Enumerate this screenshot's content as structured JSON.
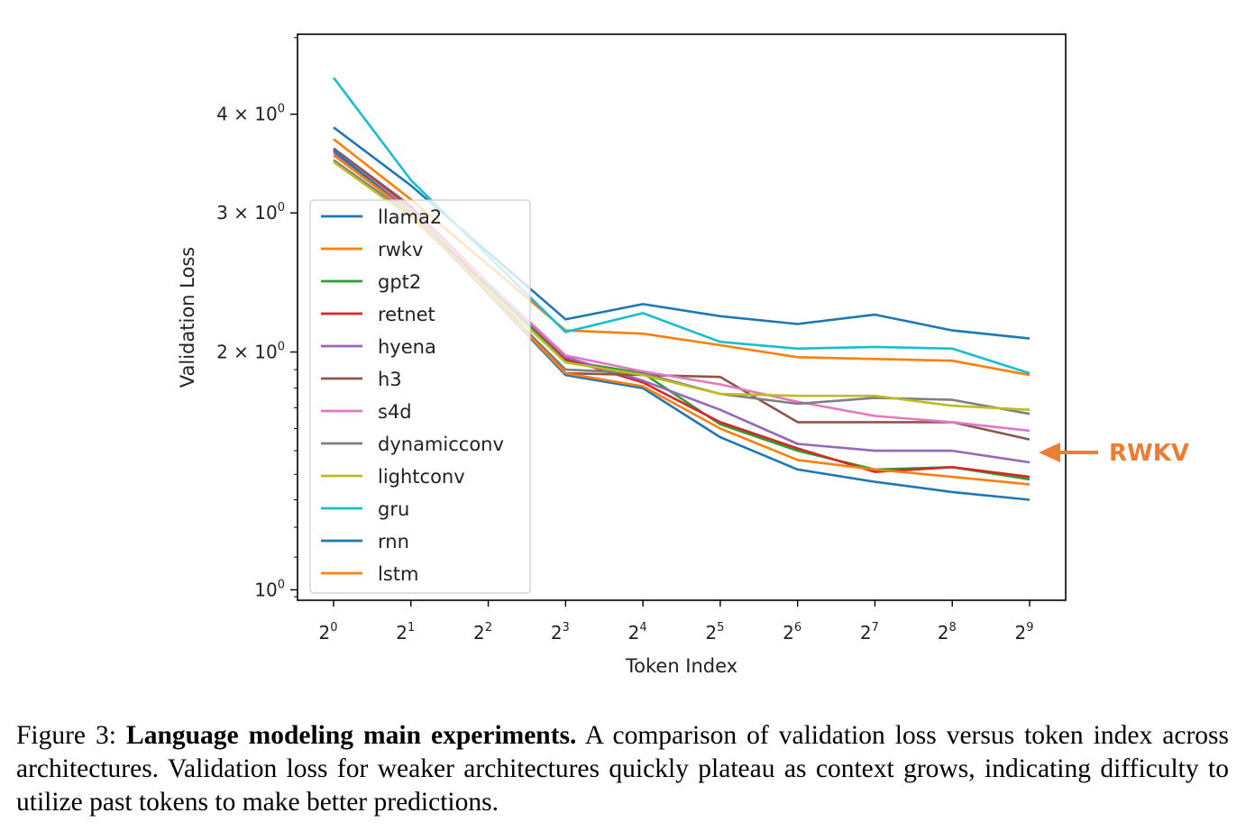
{
  "chart_data": {
    "type": "line",
    "xlabel": "Token Index",
    "ylabel": "Validation Loss",
    "x_scale": "log2",
    "y_scale": "log",
    "x": [
      1,
      2,
      4,
      8,
      16,
      32,
      64,
      128,
      256,
      512
    ],
    "x_tick_labels": [
      {
        "base": "2",
        "exp": "0"
      },
      {
        "base": "2",
        "exp": "1"
      },
      {
        "base": "2",
        "exp": "2"
      },
      {
        "base": "2",
        "exp": "3"
      },
      {
        "base": "2",
        "exp": "4"
      },
      {
        "base": "2",
        "exp": "5"
      },
      {
        "base": "2",
        "exp": "6"
      },
      {
        "base": "2",
        "exp": "7"
      },
      {
        "base": "2",
        "exp": "8"
      },
      {
        "base": "2",
        "exp": "9"
      }
    ],
    "y_ticks": [
      {
        "value": 1,
        "base": "10",
        "exp": "0"
      },
      {
        "value": 2,
        "base": "2 × 10",
        "exp": "0"
      },
      {
        "value": 3,
        "base": "3 × 10",
        "exp": "0"
      },
      {
        "value": 4,
        "base": "4 × 10",
        "exp": "0"
      }
    ],
    "ylim": [
      0.97,
      5.05
    ],
    "legend_position": "center-left",
    "series": [
      {
        "name": "llama2",
        "color": "#1f77b4",
        "values": [
          3.85,
          3.25,
          null,
          2.2,
          2.3,
          2.22,
          2.17,
          2.23,
          2.13,
          2.08
        ]
      },
      {
        "name": "rwkv",
        "color": "#ff7f0e",
        "values": [
          3.72,
          3.12,
          null,
          2.13,
          2.11,
          2.04,
          1.97,
          1.96,
          1.95,
          1.87
        ]
      },
      {
        "name": "gpt2",
        "color": "#2ca02c",
        "values": [
          3.55,
          3.0,
          null,
          1.95,
          1.88,
          1.62,
          1.5,
          1.42,
          1.43,
          1.38
        ]
      },
      {
        "name": "retnet",
        "color": "#d62728",
        "values": [
          3.6,
          3.05,
          null,
          1.96,
          1.83,
          1.63,
          1.51,
          1.41,
          1.43,
          1.39
        ]
      },
      {
        "name": "hyena",
        "color": "#9467bd",
        "values": [
          3.58,
          3.02,
          null,
          1.97,
          1.84,
          1.69,
          1.53,
          1.5,
          1.5,
          1.45
        ]
      },
      {
        "name": "h3",
        "color": "#8c564b",
        "values": [
          3.62,
          3.06,
          null,
          1.88,
          1.87,
          1.86,
          1.63,
          1.63,
          1.63,
          1.55
        ]
      },
      {
        "name": "s4d",
        "color": "#e377c2",
        "values": [
          3.6,
          3.02,
          null,
          1.98,
          1.89,
          1.82,
          1.73,
          1.66,
          1.63,
          1.59
        ]
      },
      {
        "name": "dynamicconv",
        "color": "#7f7f7f",
        "values": [
          3.5,
          2.98,
          null,
          1.9,
          1.88,
          1.77,
          1.72,
          1.75,
          1.74,
          1.67
        ]
      },
      {
        "name": "lightconv",
        "color": "#bcbd22",
        "values": [
          3.48,
          2.96,
          null,
          1.94,
          1.87,
          1.77,
          1.76,
          1.76,
          1.71,
          1.69
        ]
      },
      {
        "name": "gru",
        "color": "#17becf",
        "values": [
          4.45,
          3.3,
          null,
          2.12,
          2.24,
          2.06,
          2.02,
          2.03,
          2.02,
          1.88
        ]
      },
      {
        "name": "rnn",
        "color": "#1f77b4",
        "values": [
          3.6,
          3.0,
          null,
          1.87,
          1.8,
          1.56,
          1.42,
          1.37,
          1.33,
          1.3
        ]
      },
      {
        "name": "lstm",
        "color": "#ff7f0e",
        "values": [
          3.55,
          3.0,
          null,
          1.88,
          1.81,
          1.6,
          1.46,
          1.42,
          1.39,
          1.36
        ]
      }
    ],
    "annotation": {
      "text": "RWKV",
      "target_series": "lstm",
      "color": "#ED7D31"
    }
  },
  "caption": {
    "label": "Figure 3:",
    "title": "Language modeling main experiments.",
    "body": "A comparison of validation loss versus token index across architectures. Validation loss for weaker architectures quickly plateau as context grows, indicating difficulty to utilize past tokens to make better predictions."
  }
}
